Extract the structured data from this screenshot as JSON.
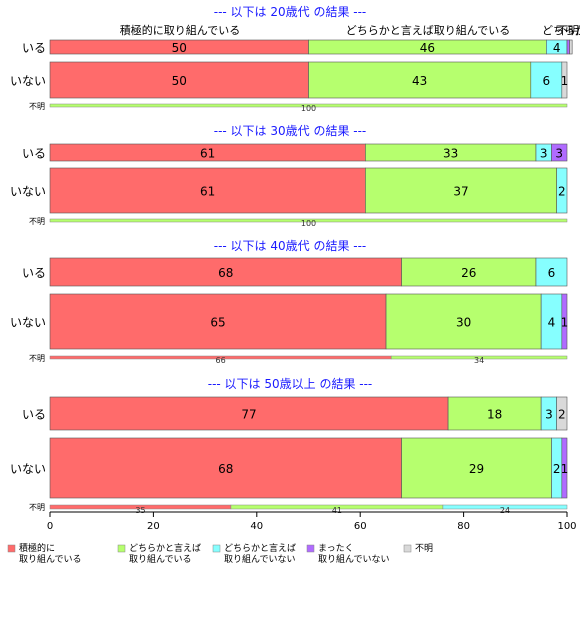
{
  "chart_data": {
    "type": "bar",
    "orientation": "horizontal",
    "stacked": true,
    "xlim": [
      0,
      100
    ],
    "x_ticks": [
      "0",
      "20",
      "40",
      "60",
      "80",
      "100"
    ],
    "grid": false,
    "legend_position": "bottom",
    "legend": [
      {
        "line1": "積極的に",
        "line2": "取り組んでいる",
        "color": "#ff6b6b"
      },
      {
        "line1": "どちらかと言えば",
        "line2": "取り組んでいる",
        "color": "#b6ff6e"
      },
      {
        "line1": "どちらかと言えば",
        "line2": "取り組んでいない",
        "color": "#86ffff"
      },
      {
        "line1": "まったく",
        "line2": "取り組んでいない",
        "color": "#b06bff"
      },
      {
        "line1": "不明",
        "line2": "",
        "color": "#d9d9d9"
      }
    ],
    "top_category_labels": [
      "積極的に取り組んでいる",
      "どちらかと言えば取り組んでいる",
      "どちらかと",
      "不明"
    ],
    "groups": [
      {
        "title": "--- 以下は 20歳代 の結果 ---",
        "rows": [
          {
            "label": "いる",
            "values": [
              50,
              46,
              4,
              0.5,
              0.5
            ],
            "labels": [
              "50",
              "46",
              "4",
              "",
              ""
            ]
          },
          {
            "label": "いない",
            "values": [
              50,
              43,
              6,
              0,
              1
            ],
            "labels": [
              "50",
              "43",
              "6",
              "",
              "1"
            ]
          },
          {
            "label": "不明",
            "values": [
              0,
              100,
              0,
              0,
              0
            ],
            "labels": [
              "",
              "100",
              "",
              "",
              ""
            ],
            "small": true
          }
        ]
      },
      {
        "title": "--- 以下は 30歳代 の結果 ---",
        "rows": [
          {
            "label": "いる",
            "values": [
              61,
              33,
              3,
              3,
              0
            ],
            "labels": [
              "61",
              "33",
              "3",
              "3",
              ""
            ]
          },
          {
            "label": "いない",
            "values": [
              61,
              37,
              2,
              0,
              0
            ],
            "labels": [
              "61",
              "37",
              "2",
              "",
              ""
            ]
          },
          {
            "label": "不明",
            "values": [
              0,
              100,
              0,
              0,
              0
            ],
            "labels": [
              "",
              "100",
              "",
              "",
              ""
            ],
            "small": true
          }
        ]
      },
      {
        "title": "--- 以下は 40歳代 の結果 ---",
        "rows": [
          {
            "label": "いる",
            "values": [
              68,
              26,
              6,
              0,
              0
            ],
            "labels": [
              "68",
              "26",
              "6",
              "",
              ""
            ]
          },
          {
            "label": "いない",
            "values": [
              65,
              30,
              4,
              1,
              0
            ],
            "labels": [
              "65",
              "30",
              "4",
              "1",
              ""
            ]
          },
          {
            "label": "不明",
            "values": [
              66,
              34,
              0,
              0,
              0
            ],
            "labels": [
              "66",
              "34",
              "",
              "",
              ""
            ],
            "small": true
          }
        ]
      },
      {
        "title": "--- 以下は 50歳以上 の結果 ---",
        "rows": [
          {
            "label": "いる",
            "values": [
              77,
              18,
              3,
              0,
              2
            ],
            "labels": [
              "77",
              "18",
              "3",
              "",
              "2"
            ]
          },
          {
            "label": "いない",
            "values": [
              68,
              29,
              2,
              1,
              0
            ],
            "labels": [
              "68",
              "29",
              "2",
              "1",
              ""
            ]
          },
          {
            "label": "不明",
            "values": [
              35,
              41,
              24,
              0,
              0
            ],
            "labels": [
              "35",
              "41",
              "24",
              "",
              ""
            ],
            "small": true
          }
        ]
      }
    ]
  }
}
